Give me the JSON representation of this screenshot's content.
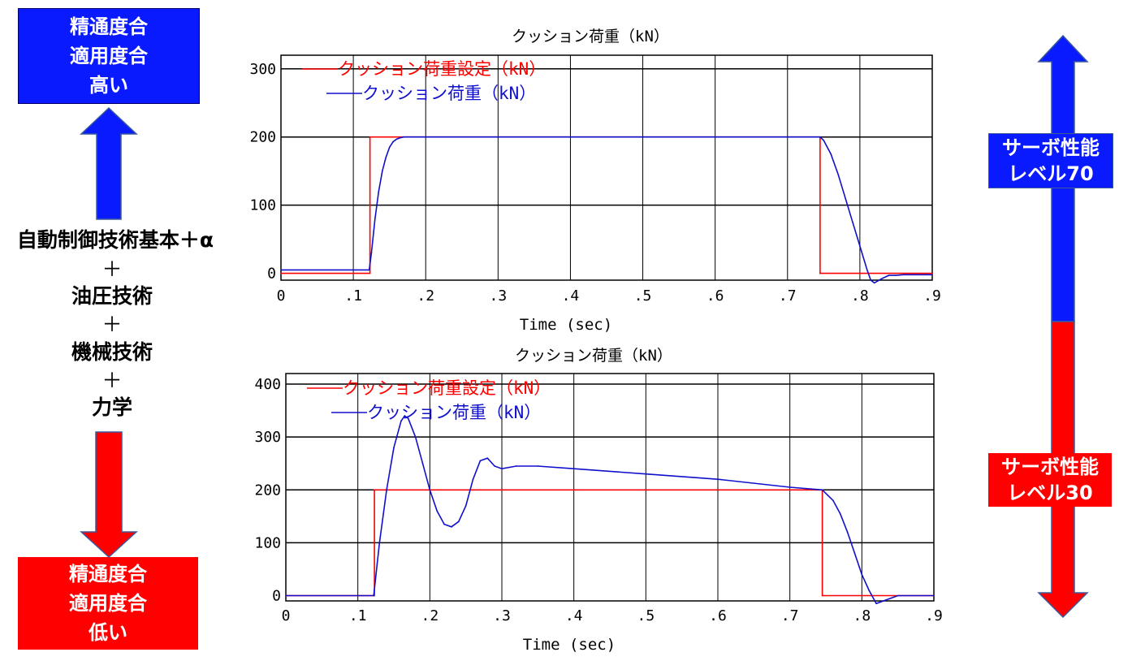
{
  "left_panel": {
    "top_box": [
      "精通度合",
      "適用度合",
      "高い"
    ],
    "bottom_box": [
      "精通度合",
      "適用度合",
      "低い"
    ],
    "middle_lines": [
      "自動制御技術基本＋α",
      "＋",
      "油圧技術",
      "＋",
      "機械技術",
      "＋",
      "力学"
    ],
    "colors": {
      "blue": "#0a1aff",
      "red": "#ff0000"
    }
  },
  "right_panel": {
    "upper_level": [
      "サーボ性能",
      "レベル70"
    ],
    "lower_level": [
      "サーボ性能",
      "レベル30"
    ],
    "colors": {
      "blue": "#0a1aff",
      "red": "#ff0000"
    }
  },
  "chart_data": [
    {
      "type": "line",
      "title": "クッション荷重（kN）",
      "xlabel": "Time (sec)",
      "ylabel": "",
      "xlim": [
        0,
        0.9
      ],
      "ylim": [
        -10,
        320
      ],
      "x_ticks": [
        0,
        0.1,
        0.2,
        0.3,
        0.4,
        0.5,
        0.6,
        0.7,
        0.8,
        0.9
      ],
      "x_tick_labels": [
        "0",
        ".1",
        ".2",
        ".3",
        ".4",
        ".5",
        ".6",
        ".7",
        ".8",
        ".9"
      ],
      "y_ticks": [
        0,
        100,
        200,
        300
      ],
      "y_tick_labels": [
        "0",
        "100",
        "200",
        "300"
      ],
      "grid": true,
      "legend": "top-left",
      "series": [
        {
          "name": "クッション荷重設定（kN）",
          "color": "#ff0000",
          "x": [
            0,
            0.123,
            0.123,
            0.745,
            0.745,
            0.9
          ],
          "y": [
            0,
            0,
            200,
            200,
            0,
            0
          ]
        },
        {
          "name": "クッション荷重（kN）",
          "color": "#1010cc",
          "x": [
            0,
            0.122,
            0.125,
            0.13,
            0.135,
            0.14,
            0.145,
            0.15,
            0.155,
            0.16,
            0.165,
            0.17,
            0.18,
            0.2,
            0.3,
            0.5,
            0.745,
            0.75,
            0.76,
            0.77,
            0.78,
            0.79,
            0.8,
            0.81,
            0.815,
            0.82,
            0.83,
            0.84,
            0.85,
            0.86,
            0.9
          ],
          "y": [
            5,
            5,
            30,
            80,
            120,
            150,
            170,
            185,
            193,
            197,
            199,
            200,
            200,
            200,
            200,
            200,
            200,
            195,
            175,
            145,
            110,
            75,
            40,
            5,
            -10,
            -14,
            -8,
            -3,
            -3,
            -2,
            -2
          ]
        }
      ]
    },
    {
      "type": "line",
      "title": "クッション荷重（kN）",
      "xlabel": "Time (sec)",
      "ylabel": "",
      "xlim": [
        0,
        0.9
      ],
      "ylim": [
        -10,
        420
      ],
      "x_ticks": [
        0,
        0.1,
        0.2,
        0.3,
        0.4,
        0.5,
        0.6,
        0.7,
        0.8,
        0.9
      ],
      "x_tick_labels": [
        "0",
        ".1",
        ".2",
        ".3",
        ".4",
        ".5",
        ".6",
        ".7",
        ".8",
        ".9"
      ],
      "y_ticks": [
        0,
        100,
        200,
        300,
        400
      ],
      "y_tick_labels": [
        "0",
        "100",
        "200",
        "300",
        "400"
      ],
      "grid": true,
      "legend": "top-left",
      "series": [
        {
          "name": "クッション荷重設定（kN）",
          "color": "#ff0000",
          "x": [
            0,
            0.123,
            0.123,
            0.745,
            0.745,
            0.9
          ],
          "y": [
            0,
            0,
            200,
            200,
            0,
            0
          ]
        },
        {
          "name": "クッション荷重（kN）",
          "color": "#1010cc",
          "x": [
            0,
            0.122,
            0.13,
            0.14,
            0.15,
            0.16,
            0.165,
            0.17,
            0.18,
            0.19,
            0.2,
            0.21,
            0.22,
            0.23,
            0.24,
            0.25,
            0.26,
            0.27,
            0.28,
            0.29,
            0.3,
            0.32,
            0.35,
            0.4,
            0.5,
            0.6,
            0.7,
            0.745,
            0.76,
            0.77,
            0.78,
            0.79,
            0.8,
            0.81,
            0.82,
            0.83,
            0.84,
            0.85,
            0.9
          ],
          "y": [
            0,
            0,
            100,
            200,
            280,
            330,
            340,
            335,
            300,
            250,
            200,
            160,
            135,
            130,
            140,
            170,
            220,
            255,
            260,
            245,
            240,
            245,
            245,
            240,
            230,
            220,
            205,
            200,
            180,
            155,
            120,
            80,
            40,
            10,
            -15,
            -10,
            -5,
            0,
            0
          ]
        }
      ]
    }
  ]
}
